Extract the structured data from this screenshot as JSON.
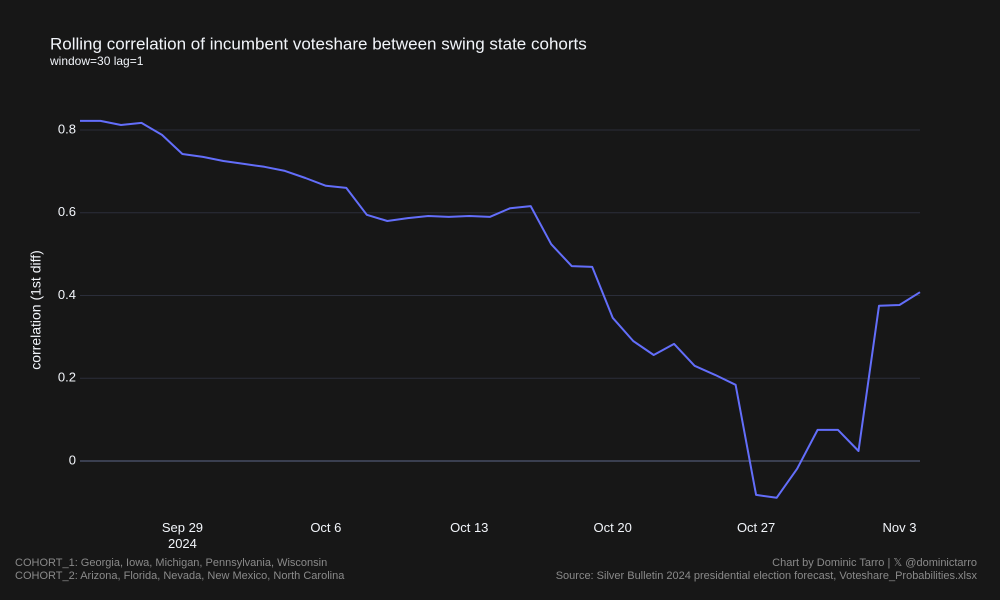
{
  "chart_data": {
    "type": "line",
    "title": "Rolling correlation of incumbent voteshare between swing state cohorts",
    "subtitle": "window=30 lag=1",
    "y_label": "correlation (1st diff)",
    "x": [
      "2024-09-24",
      "2024-09-25",
      "2024-09-26",
      "2024-09-27",
      "2024-09-28",
      "2024-09-29",
      "2024-09-30",
      "2024-10-01",
      "2024-10-02",
      "2024-10-03",
      "2024-10-04",
      "2024-10-05",
      "2024-10-06",
      "2024-10-07",
      "2024-10-08",
      "2024-10-09",
      "2024-10-10",
      "2024-10-11",
      "2024-10-12",
      "2024-10-13",
      "2024-10-14",
      "2024-10-15",
      "2024-10-16",
      "2024-10-17",
      "2024-10-18",
      "2024-10-19",
      "2024-10-20",
      "2024-10-21",
      "2024-10-22",
      "2024-10-23",
      "2024-10-24",
      "2024-10-25",
      "2024-10-26",
      "2024-10-27",
      "2024-10-28",
      "2024-10-29",
      "2024-10-30",
      "2024-10-31",
      "2024-11-01",
      "2024-11-02",
      "2024-11-03",
      "2024-11-04"
    ],
    "values": [
      0.822,
      0.822,
      0.812,
      0.817,
      0.788,
      0.742,
      0.735,
      0.725,
      0.718,
      0.711,
      0.701,
      0.684,
      0.665,
      0.66,
      0.595,
      0.58,
      0.587,
      0.592,
      0.59,
      0.592,
      0.59,
      0.611,
      0.616,
      0.524,
      0.471,
      0.469,
      0.346,
      0.29,
      0.256,
      0.283,
      0.23,
      0.208,
      0.184,
      -0.082,
      -0.089,
      -0.019,
      0.075,
      0.075,
      0.024,
      0.375,
      0.377,
      0.408
    ],
    "color": "#636efa",
    "xlim": [
      "2024-09-24",
      "2024-11-04"
    ],
    "xticks": [
      {
        "value": "2024-09-29",
        "label": "Sep 29"
      },
      {
        "value": "2024-10-06",
        "label": "Oct 6"
      },
      {
        "value": "2024-10-13",
        "label": "Oct 13"
      },
      {
        "value": "2024-10-20",
        "label": "Oct 20"
      },
      {
        "value": "2024-10-27",
        "label": "Oct 27"
      },
      {
        "value": "2024-11-03",
        "label": "Nov 3"
      }
    ],
    "xtick_year": "2024",
    "ylim": [
      -0.12,
      0.9
    ],
    "yticks": [
      0,
      0.2,
      0.4,
      0.6,
      0.8
    ],
    "grid": true,
    "notes_left": [
      "COHORT_1: Georgia, Iowa, Michigan, Pennsylvania, Wisconsin",
      "COHORT_2: Arizona, Florida, Nevada, New Mexico, North Carolina"
    ],
    "notes_right": [
      "Chart by Dominic Tarro | 𝕏 @dominictarro",
      "Source: Silver Bulletin 2024 presidential election forecast, Voteshare_Probabilities.xlsx"
    ]
  }
}
